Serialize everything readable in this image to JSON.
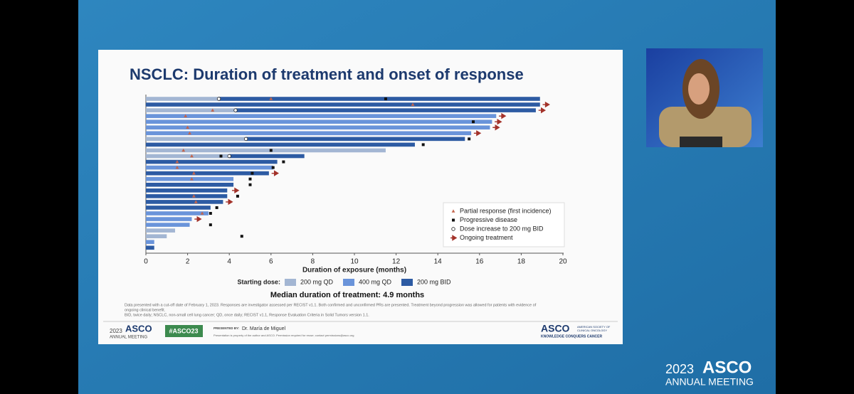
{
  "chart_data": {
    "type": "swimmer",
    "title": "NSCLC: Duration of treatment and onset of response",
    "x_label": "Duration of exposure (months)",
    "xlim": [
      0,
      20
    ],
    "xticks": [
      0,
      2,
      4,
      6,
      8,
      10,
      12,
      14,
      16,
      18,
      20
    ],
    "legend_title": "Starting dose:",
    "series": [
      {
        "name": "200 mg QD",
        "color": "#a3b6d3",
        "values": [
          3.5,
          null,
          4.3,
          null,
          null,
          null,
          null,
          4.8,
          null,
          11.5,
          4.0,
          null,
          null,
          null,
          null,
          null,
          null,
          null,
          null,
          null,
          null,
          null,
          null,
          1.4,
          1.0,
          null,
          null
        ]
      },
      {
        "name": "400 mg QD",
        "color": "#6a94da",
        "values": [
          null,
          null,
          null,
          16.8,
          16.6,
          16.5,
          15.6,
          null,
          null,
          null,
          null,
          null,
          6.1,
          null,
          4.2,
          null,
          null,
          null,
          null,
          null,
          3.0,
          2.2,
          2.1,
          null,
          null,
          0.4,
          null
        ]
      },
      {
        "name": "200 mg BID",
        "color": "#2d5ba3",
        "values": [
          18.9,
          18.9,
          18.7,
          null,
          null,
          null,
          null,
          15.3,
          12.9,
          null,
          7.6,
          6.3,
          null,
          5.9,
          null,
          4.2,
          3.9,
          3.9,
          3.7,
          3.1,
          null,
          null,
          null,
          null,
          null,
          null,
          0.4
        ]
      }
    ],
    "markers": [
      {
        "name": "Partial response (first incidence)",
        "symbol": "triangle",
        "color": "#c4654c",
        "values": [
          6.0,
          12.8,
          3.2,
          1.9,
          null,
          2.0,
          2.1,
          null,
          null,
          1.8,
          2.2,
          1.5,
          1.5,
          2.3,
          2.2,
          null,
          null,
          2.3,
          2.4,
          null,
          2.7,
          null,
          null,
          null,
          null,
          null,
          null
        ]
      },
      {
        "name": "Progressive disease",
        "symbol": "square",
        "color": "#111111",
        "values": [
          11.5,
          null,
          null,
          null,
          15.7,
          null,
          null,
          15.5,
          13.3,
          6.0,
          3.6,
          6.6,
          6.1,
          5.1,
          5.0,
          5.0,
          null,
          4.4,
          null,
          3.4,
          3.1,
          null,
          3.1,
          null,
          4.6,
          null,
          null
        ]
      },
      {
        "name": "Dose increase to 200 mg BID",
        "symbol": "circle",
        "color": "#ffffff",
        "values": [
          3.5,
          null,
          4.3,
          null,
          null,
          null,
          null,
          4.8,
          null,
          null,
          4.0,
          null,
          null,
          null,
          null,
          null,
          null,
          null,
          null,
          null,
          null,
          null,
          null,
          null,
          null,
          null,
          null
        ]
      },
      {
        "name": "Ongoing treatment",
        "symbol": "arrow",
        "color": "#a3322a",
        "values": [
          null,
          19.2,
          19.0,
          17.1,
          16.9,
          16.8,
          15.9,
          null,
          null,
          null,
          null,
          null,
          null,
          6.2,
          null,
          null,
          4.3,
          null,
          4.0,
          null,
          null,
          2.5,
          null,
          null,
          null,
          null,
          null
        ]
      }
    ]
  },
  "slide": {
    "median": "Median duration of treatment: 4.9 months",
    "footnotes": [
      "Data presented with a cut-off date of February 1, 2023. Responses are investigator assessed per RECIST v1.1. Both confirmed and unconfirmed PRs are presented. Treatment beyond progression was allowed for patients with evidence of",
      "ongoing clinical benefit.",
      "BID, twice daily; NSCLC, non-small cell lung cancer; QD, once daily; RECIST v1.1, Response Evaluation Criteria in Solid Tumors version 1.1."
    ],
    "footer_year": "2023",
    "footer_asco": "ASCO",
    "footer_meeting": "ANNUAL MEETING",
    "hashtag": "#ASCO23",
    "presented_by": "PRESENTED BY:",
    "presenter": "Dr. María de Miguel",
    "notice": "Presentation is property of the author and ASCO. Permission required for reuse; contact permissions@asco.org",
    "logo": "ASCO",
    "society": [
      "AMERICAN SOCIETY OF",
      "CLINICAL ONCOLOGY"
    ],
    "tagline": "KNOWLEDGE CONQUERS CANCER"
  },
  "overlay": {
    "year": "2023",
    "brand": "ASCO",
    "meeting": "ANNUAL MEETING"
  }
}
